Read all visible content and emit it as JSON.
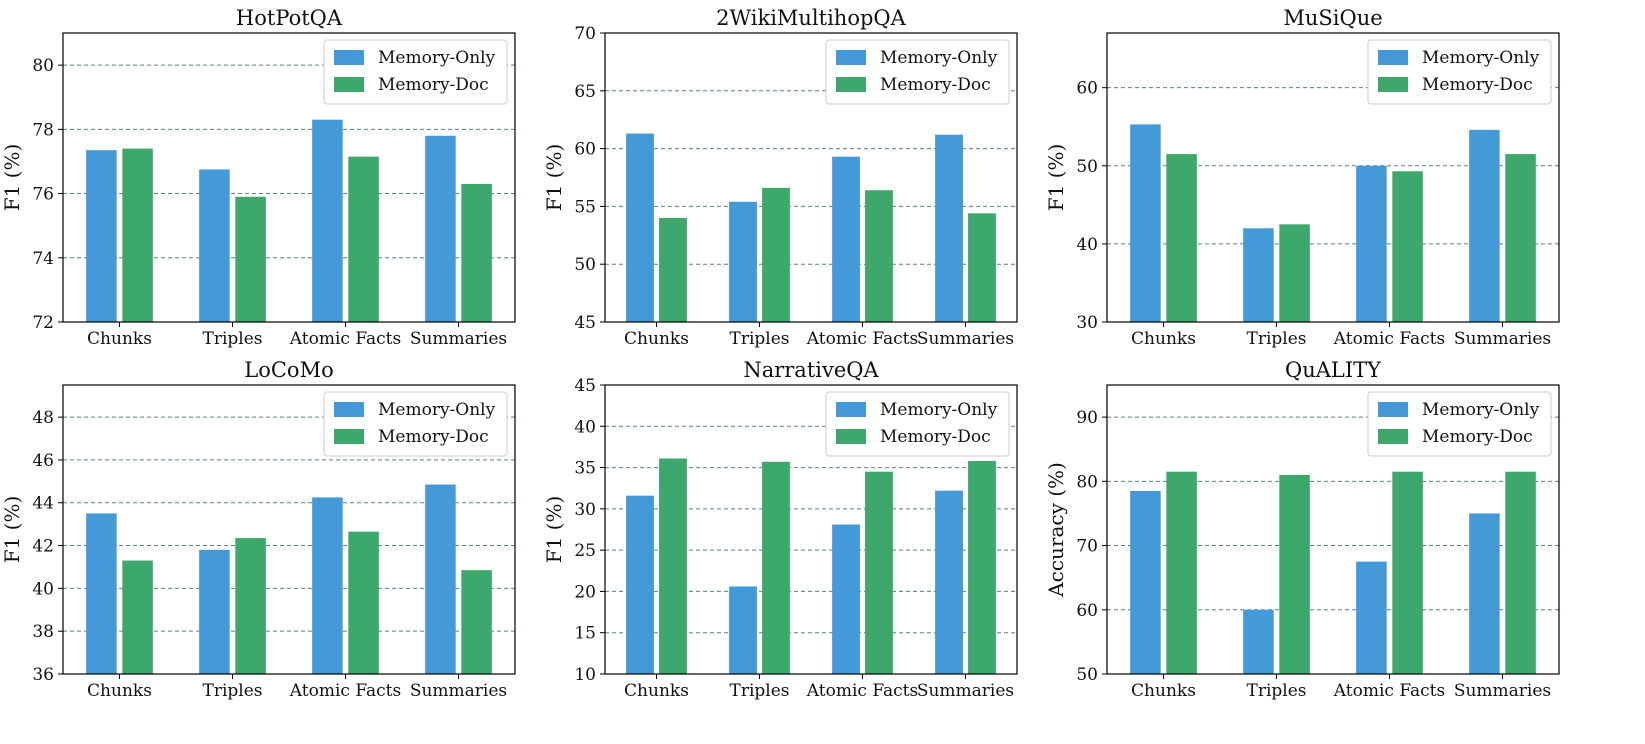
{
  "colors": {
    "memory_only": "#4499D8",
    "memory_doc": "#3CA86B"
  },
  "chart_data": [
    {
      "type": "bar",
      "title": "HotPotQA",
      "ylabel": "F1 (%)",
      "ylim": [
        72,
        81
      ],
      "yticks": [
        72,
        74,
        76,
        78,
        80
      ],
      "categories": [
        "Chunks",
        "Triples",
        "Atomic Facts",
        "Summaries"
      ],
      "series": [
        {
          "name": "Memory-Only",
          "values": [
            77.35,
            76.75,
            78.3,
            77.8
          ]
        },
        {
          "name": "Memory-Doc",
          "values": [
            77.4,
            75.9,
            77.15,
            76.3
          ]
        }
      ],
      "legend": "top-right"
    },
    {
      "type": "bar",
      "title": "2WikiMultihopQA",
      "ylabel": "F1 (%)",
      "ylim": [
        45,
        70
      ],
      "yticks": [
        45,
        50,
        55,
        60,
        65,
        70
      ],
      "categories": [
        "Chunks",
        "Triples",
        "Atomic Facts",
        "Summaries"
      ],
      "series": [
        {
          "name": "Memory-Only",
          "values": [
            61.3,
            55.4,
            59.3,
            61.2
          ]
        },
        {
          "name": "Memory-Doc",
          "values": [
            54.0,
            56.6,
            56.4,
            54.4
          ]
        }
      ],
      "legend": "top-right"
    },
    {
      "type": "bar",
      "title": "MuSiQue",
      "ylabel": "F1 (%)",
      "ylim": [
        30,
        67
      ],
      "yticks": [
        30,
        40,
        50,
        60
      ],
      "categories": [
        "Chunks",
        "Triples",
        "Atomic Facts",
        "Summaries"
      ],
      "series": [
        {
          "name": "Memory-Only",
          "values": [
            55.3,
            42.0,
            50.0,
            54.6
          ]
        },
        {
          "name": "Memory-Doc",
          "values": [
            51.5,
            42.5,
            49.3,
            51.5
          ]
        }
      ],
      "legend": "top-right"
    },
    {
      "type": "bar",
      "title": "LoCoMo",
      "ylabel": "F1 (%)",
      "ylim": [
        36,
        49.5
      ],
      "yticks": [
        36,
        38,
        40,
        42,
        44,
        46,
        48
      ],
      "categories": [
        "Chunks",
        "Triples",
        "Atomic Facts",
        "Summaries"
      ],
      "series": [
        {
          "name": "Memory-Only",
          "values": [
            43.5,
            41.8,
            44.25,
            44.85
          ]
        },
        {
          "name": "Memory-Doc",
          "values": [
            41.3,
            42.35,
            42.65,
            40.85
          ]
        }
      ],
      "legend": "top-right"
    },
    {
      "type": "bar",
      "title": "NarrativeQA",
      "ylabel": "F1 (%)",
      "ylim": [
        10,
        45
      ],
      "yticks": [
        10,
        15,
        20,
        25,
        30,
        35,
        40,
        45
      ],
      "categories": [
        "Chunks",
        "Triples",
        "Atomic Facts",
        "Summaries"
      ],
      "series": [
        {
          "name": "Memory-Only",
          "values": [
            31.6,
            20.6,
            28.1,
            32.2
          ]
        },
        {
          "name": "Memory-Doc",
          "values": [
            36.1,
            35.7,
            34.5,
            35.8
          ]
        }
      ],
      "legend": "top-right"
    },
    {
      "type": "bar",
      "title": "QuALITY",
      "ylabel": "Accuracy (%)",
      "ylim": [
        50,
        95
      ],
      "yticks": [
        50,
        60,
        70,
        80,
        90
      ],
      "categories": [
        "Chunks",
        "Triples",
        "Atomic Facts",
        "Summaries"
      ],
      "series": [
        {
          "name": "Memory-Only",
          "values": [
            78.5,
            60.0,
            67.5,
            75.0
          ]
        },
        {
          "name": "Memory-Doc",
          "values": [
            81.5,
            81.0,
            81.5,
            81.5
          ]
        }
      ],
      "legend": "top-right"
    }
  ]
}
